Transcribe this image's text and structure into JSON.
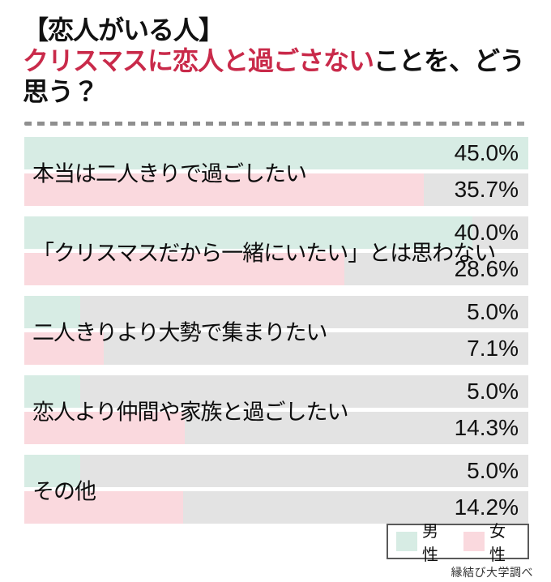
{
  "title": {
    "line1": "【恋人がいる人】",
    "line2_highlight": "クリスマスに恋人と過ごさない",
    "line2_rest": "ことを、どう思う？"
  },
  "colors": {
    "male": "#d7ece4",
    "female": "#fad9de",
    "track": "#e3e3e3",
    "accent_red": "#c92a4a",
    "divider_gray": "#8f8f8f"
  },
  "legend": {
    "male_label": "男性",
    "female_label": "女性"
  },
  "source": "縁結び大学調べ",
  "chart_data": {
    "type": "bar",
    "orientation": "horizontal",
    "title": "【恋人がいる人】クリスマスに恋人と過ごさないことを、どう思う？",
    "categories": [
      "本当は二人きりで過ごしたい",
      "「クリスマスだから一緒にいたい」とは思わない",
      "二人きりより大勢で集まりたい",
      "恋人より仲間や家族と過ごしたい",
      "その他"
    ],
    "series": [
      {
        "name": "男性",
        "values": [
          45.0,
          40.0,
          5.0,
          5.0,
          5.0
        ]
      },
      {
        "name": "女性",
        "values": [
          35.7,
          28.6,
          7.1,
          14.3,
          14.2
        ]
      }
    ],
    "value_suffix": "%",
    "xlim": [
      0,
      45
    ],
    "grid": false,
    "legend_position": "bottom-right",
    "value_labels_visible": true
  }
}
